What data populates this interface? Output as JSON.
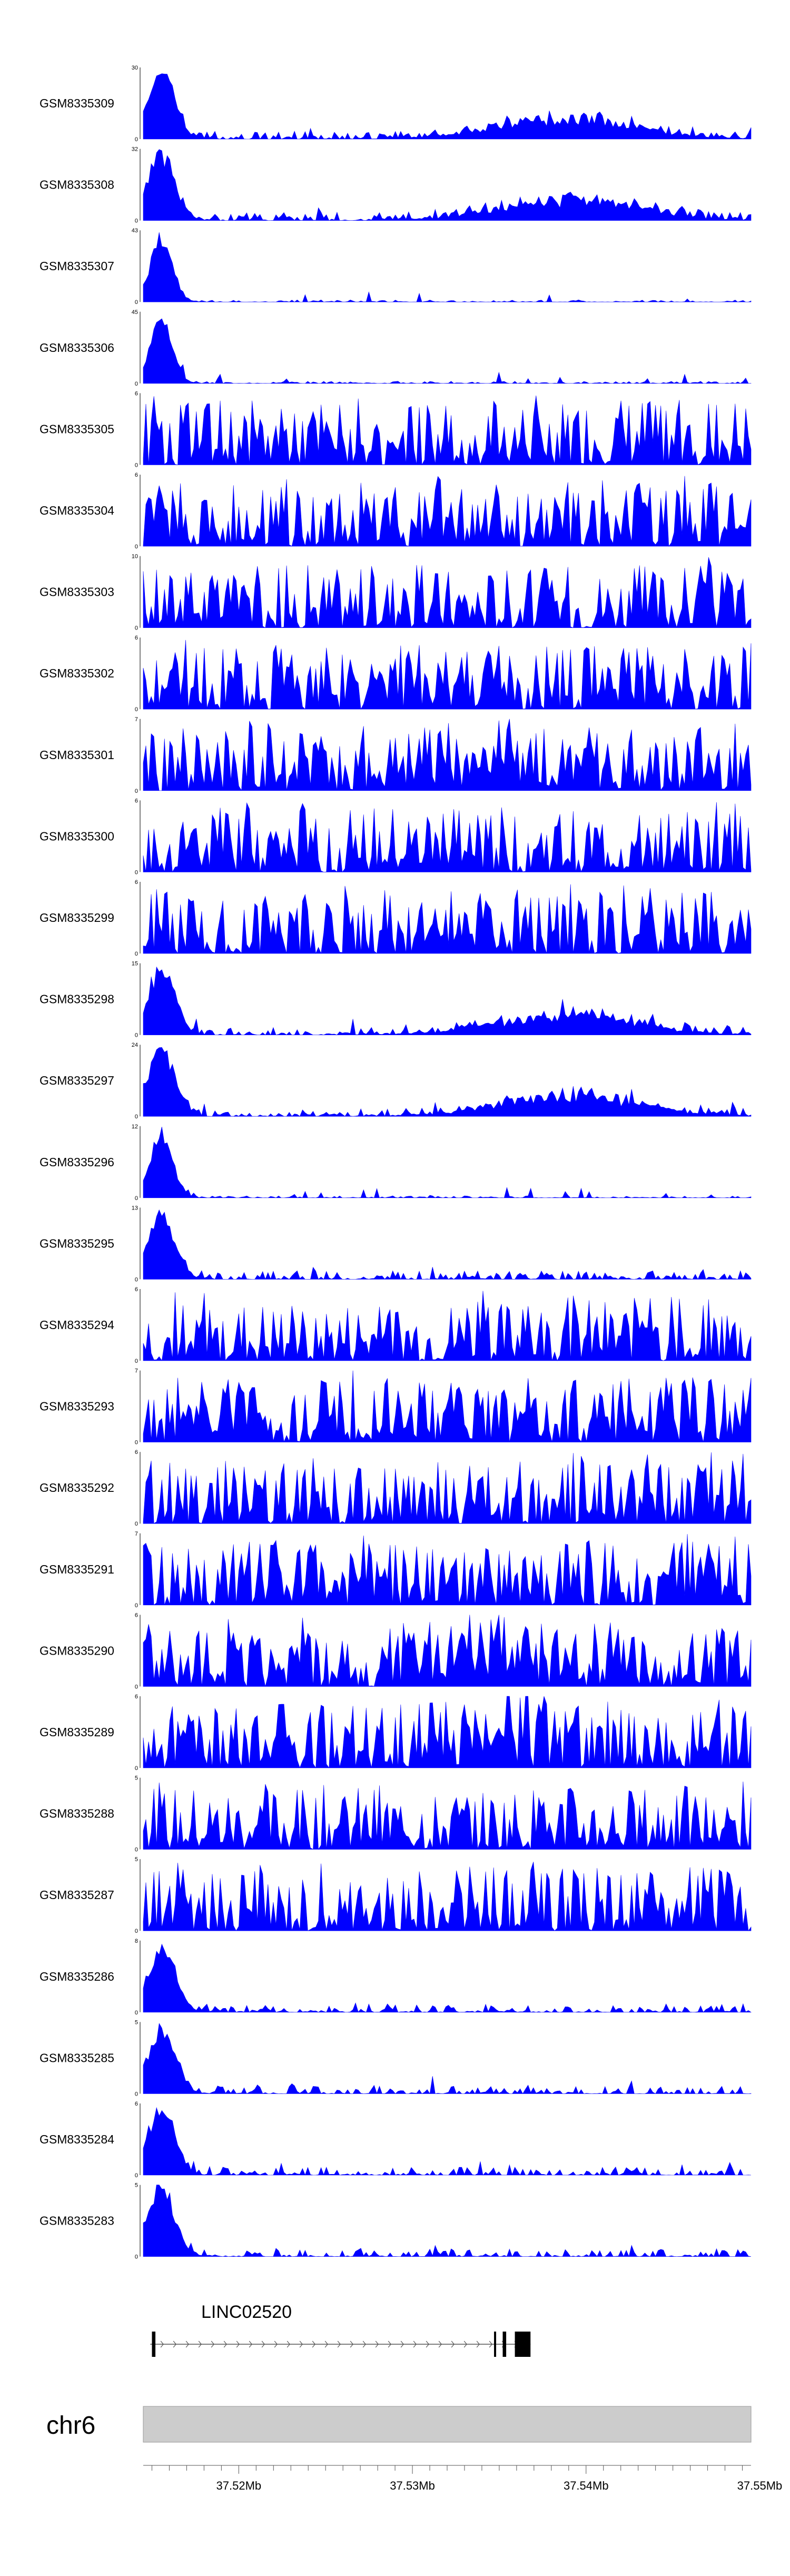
{
  "chart_data": {
    "type": "area",
    "tracks": [
      {
        "name": "GSM8335309",
        "ymax": "30",
        "ymin": "0",
        "profile": "early-broad",
        "seed": 11
      },
      {
        "name": "GSM8335308",
        "ymax": "32",
        "ymin": "0",
        "profile": "early-broad",
        "seed": 12
      },
      {
        "name": "GSM8335307",
        "ymax": "43",
        "ymin": "0",
        "profile": "early",
        "seed": 13
      },
      {
        "name": "GSM8335306",
        "ymax": "45",
        "ymin": "0",
        "profile": "early",
        "seed": 14
      },
      {
        "name": "GSM8335305",
        "ymax": "6",
        "ymin": "0",
        "profile": "noise",
        "seed": 15
      },
      {
        "name": "GSM8335304",
        "ymax": "6",
        "ymin": "0",
        "profile": "noise",
        "seed": 16
      },
      {
        "name": "GSM8335303",
        "ymax": "10",
        "ymin": "0",
        "profile": "noise",
        "seed": 17
      },
      {
        "name": "GSM8335302",
        "ymax": "6",
        "ymin": "0",
        "profile": "noise",
        "seed": 18
      },
      {
        "name": "GSM8335301",
        "ymax": "7",
        "ymin": "0",
        "profile": "noise-mid",
        "seed": 19
      },
      {
        "name": "GSM8335300",
        "ymax": "6",
        "ymin": "0",
        "profile": "noise",
        "seed": 20
      },
      {
        "name": "GSM8335299",
        "ymax": "6",
        "ymin": "0",
        "profile": "noise",
        "seed": 21
      },
      {
        "name": "GSM8335298",
        "ymax": "15",
        "ymin": "0",
        "profile": "early-broad",
        "seed": 22
      },
      {
        "name": "GSM8335297",
        "ymax": "24",
        "ymin": "0",
        "profile": "early-broad",
        "seed": 23
      },
      {
        "name": "GSM8335296",
        "ymax": "12",
        "ymin": "0",
        "profile": "early",
        "seed": 24
      },
      {
        "name": "GSM8335295",
        "ymax": "13",
        "ymin": "0",
        "profile": "early-low",
        "seed": 25
      },
      {
        "name": "GSM8335294",
        "ymax": "6",
        "ymin": "0",
        "profile": "noise",
        "seed": 26
      },
      {
        "name": "GSM8335293",
        "ymax": "7",
        "ymin": "0",
        "profile": "noise",
        "seed": 27
      },
      {
        "name": "GSM8335292",
        "ymax": "6",
        "ymin": "0",
        "profile": "noise",
        "seed": 28
      },
      {
        "name": "GSM8335291",
        "ymax": "7",
        "ymin": "0",
        "profile": "noise",
        "seed": 29
      },
      {
        "name": "GSM8335290",
        "ymax": "6",
        "ymin": "0",
        "profile": "noise-mid",
        "seed": 30
      },
      {
        "name": "GSM8335289",
        "ymax": "6",
        "ymin": "0",
        "profile": "noise-mid",
        "seed": 31
      },
      {
        "name": "GSM8335288",
        "ymax": "5",
        "ymin": "0",
        "profile": "noise",
        "seed": 32
      },
      {
        "name": "GSM8335287",
        "ymax": "5",
        "ymin": "0",
        "profile": "noise",
        "seed": 33
      },
      {
        "name": "GSM8335286",
        "ymax": "8",
        "ymin": "0",
        "profile": "early-low",
        "seed": 34
      },
      {
        "name": "GSM8335285",
        "ymax": "5",
        "ymin": "0",
        "profile": "early-low",
        "seed": 35
      },
      {
        "name": "GSM8335284",
        "ymax": "6",
        "ymin": "0",
        "profile": "early-low",
        "seed": 36
      },
      {
        "name": "GSM8335283",
        "ymax": "5",
        "ymin": "0",
        "profile": "early-low",
        "seed": 37
      }
    ],
    "gene": {
      "name": "LINC02520",
      "strand": "+",
      "start_mb": 37.5149,
      "end_mb": 37.5368,
      "exons_mb": [
        [
          37.515,
          37.5152
        ],
        [
          37.5347,
          37.5348
        ],
        [
          37.5352,
          37.5354
        ],
        [
          37.5359,
          37.5368
        ]
      ]
    },
    "chromosome": "chr6",
    "x_range_mb": [
      37.5145,
      37.5495
    ],
    "x_ticks": [
      {
        "value": 37.52,
        "label": "37.52Mb"
      },
      {
        "value": 37.53,
        "label": "37.53Mb"
      },
      {
        "value": 37.54,
        "label": "37.54Mb"
      },
      {
        "value": 37.55,
        "label": "37.55Mb"
      }
    ],
    "fill_color": "#0000ff",
    "ideogram_color": "#cccccc"
  }
}
